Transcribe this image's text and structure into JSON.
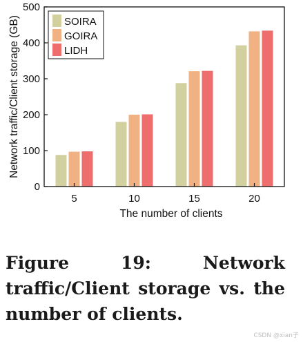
{
  "chart_data": {
    "type": "bar",
    "categories": [
      "5",
      "10",
      "15",
      "20"
    ],
    "series": [
      {
        "name": "SOIRA",
        "color": "#d3d09f",
        "values": [
          88,
          180,
          288,
          393
        ]
      },
      {
        "name": "GOIRA",
        "color": "#f0b283",
        "values": [
          97,
          200,
          321,
          432
        ]
      },
      {
        "name": "LIDH",
        "color": "#ee6e6e",
        "values": [
          98,
          201,
          322,
          434
        ]
      }
    ],
    "title": "",
    "xlabel": "The number of clients",
    "ylabel": "Network traffic/Client storage (GB)",
    "ylim": [
      0,
      500
    ],
    "yticks": [
      0,
      100,
      200,
      300,
      400,
      500
    ],
    "grid": false,
    "legend_position": "top-left"
  },
  "caption": "Figure 19: Network traffic/Client storage vs. the number of clients.",
  "watermark": "CSDN @xian子"
}
